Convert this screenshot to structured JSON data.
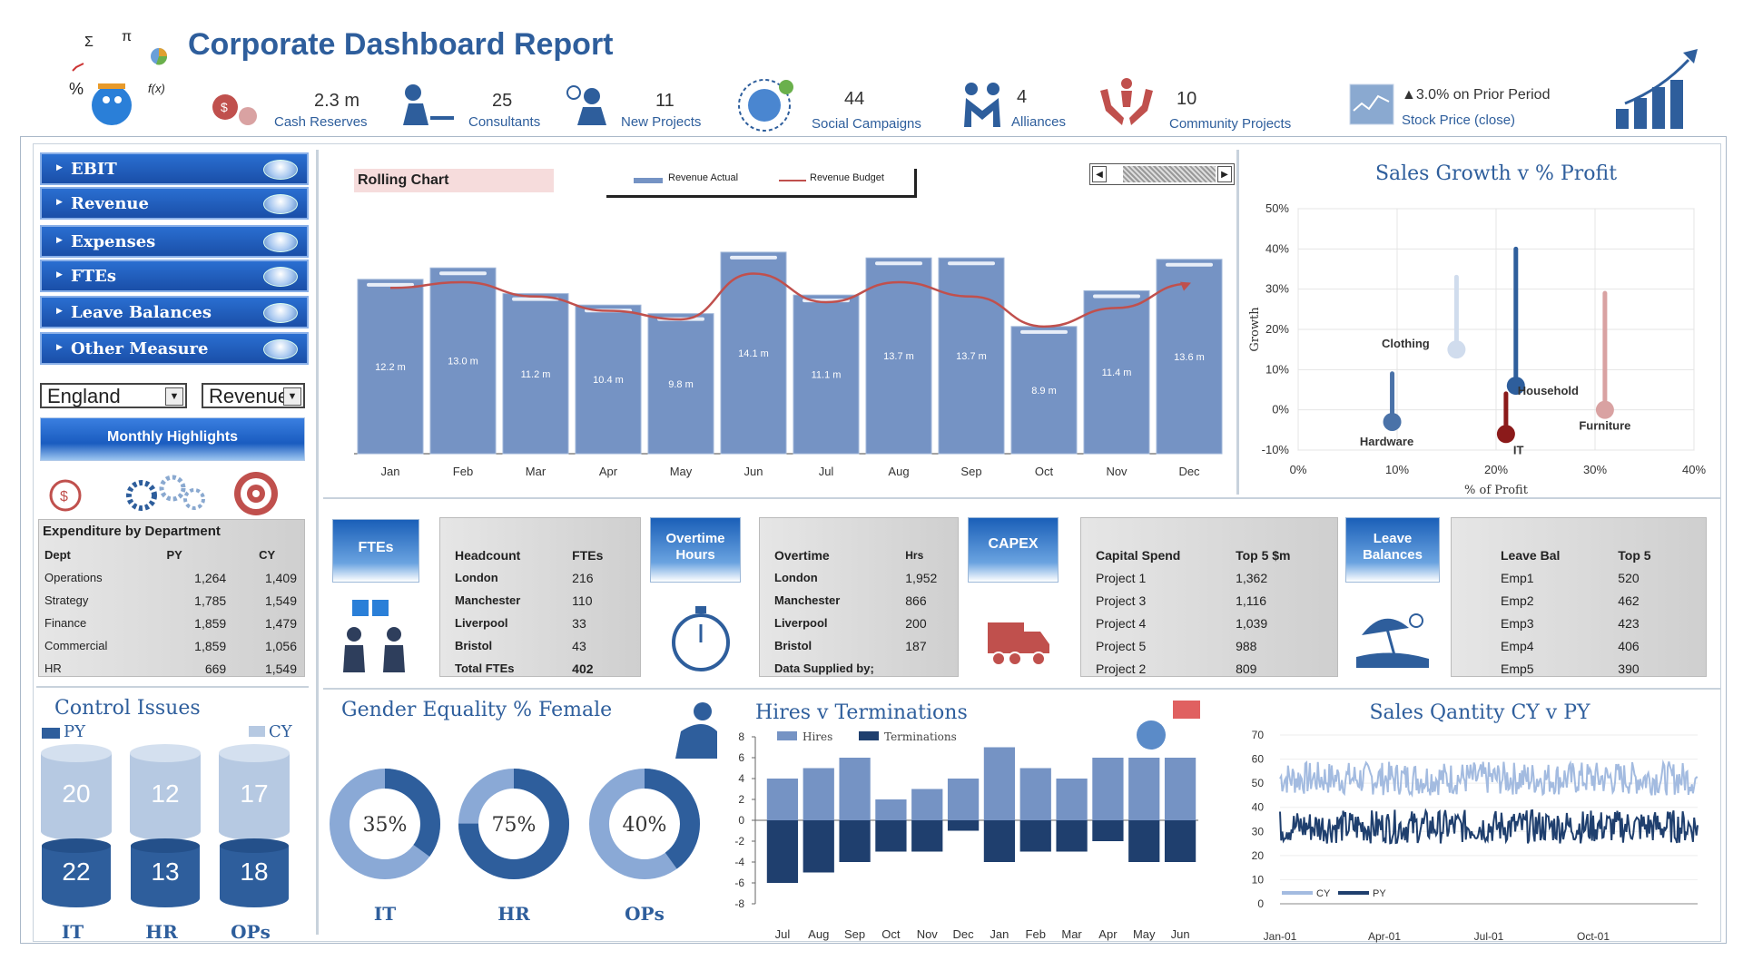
{
  "header": {
    "title": "Corporate Dashboard Report",
    "logo_symbols": {
      "sigma": "Σ",
      "pi": "π",
      "percent": "%",
      "fx": "f(x)"
    },
    "kpis": [
      {
        "value": "2.3 m",
        "label": "Cash Reserves",
        "icon": "money-bag-icon"
      },
      {
        "value": "25",
        "label": "Consultants",
        "icon": "consultant-icon"
      },
      {
        "value": "11",
        "label": "New Projects",
        "icon": "idea-person-icon"
      },
      {
        "value": "44",
        "label": "Social Campaigns",
        "icon": "thumbs-up-icon"
      },
      {
        "value": "4",
        "label": "Alliances",
        "icon": "alliance-people-icon"
      },
      {
        "value": "10",
        "label": "Community Projects",
        "icon": "hands-person-icon"
      },
      {
        "value": "▲3.0% on Prior Period",
        "label": "Stock Price (close)",
        "icon": "stock-chart-icon"
      }
    ]
  },
  "sidebar": {
    "menu": [
      "EBIT",
      "Revenue",
      "Expenses",
      "FTEs",
      "Leave Balances",
      "Other Measure"
    ],
    "region_select": "England",
    "measure_select": "Revenue",
    "highlights_button": "Monthly Highlights",
    "expenditure": {
      "title": "Expenditure by Department",
      "headers": [
        "Dept",
        "PY",
        "CY"
      ],
      "rows": [
        [
          "Operations",
          "1,264",
          "1,409"
        ],
        [
          "Strategy",
          "1,785",
          "1,549"
        ],
        [
          "Finance",
          "1,859",
          "1,479"
        ],
        [
          "Commercial",
          "1,859",
          "1,056"
        ],
        [
          "HR",
          "669",
          "1,549"
        ]
      ]
    }
  },
  "rolling": {
    "label": "Rolling Chart",
    "legend_actual": "Revenue Actual",
    "legend_budget": "Revenue Budget"
  },
  "panels": {
    "ftes": {
      "badge": "FTEs",
      "headers": [
        "Headcount",
        "FTEs"
      ],
      "rows": [
        [
          "London",
          "216"
        ],
        [
          "Manchester",
          "110"
        ],
        [
          "Liverpool",
          "33"
        ],
        [
          "Bristol",
          "43"
        ],
        [
          "Total FTEs",
          "402"
        ]
      ]
    },
    "overtime": {
      "badge": "Overtime Hours",
      "headers": [
        "Overtime",
        "Hrs"
      ],
      "rows": [
        [
          "London",
          "1,952"
        ],
        [
          "Manchester",
          "866"
        ],
        [
          "Liverpool",
          "200"
        ],
        [
          "Bristol",
          "187"
        ],
        [
          "Data Supplied by;",
          ""
        ]
      ]
    },
    "capex": {
      "badge": "CAPEX",
      "headers": [
        "Capital Spend",
        "Top 5 $m"
      ],
      "rows": [
        [
          "Project 1",
          "1,362"
        ],
        [
          "Project 3",
          "1,116"
        ],
        [
          "Project 4",
          "1,039"
        ],
        [
          "Project 5",
          "988"
        ],
        [
          "Project 2",
          "809"
        ]
      ]
    },
    "leave": {
      "badge": "Leave Balances",
      "headers": [
        "Leave Bal",
        "Top 5"
      ],
      "rows": [
        [
          "Emp1",
          "520"
        ],
        [
          "Emp2",
          "462"
        ],
        [
          "Emp3",
          "423"
        ],
        [
          "Emp4",
          "406"
        ],
        [
          "Emp5",
          "390"
        ]
      ]
    }
  },
  "control": {
    "title": "Control Issues",
    "py_label": "PY",
    "cy_label": "CY"
  },
  "gender": {
    "title": "Gender Equality % Female"
  },
  "colors": {
    "primary": "#2e5e9c",
    "bar": "#7593c4",
    "light": "#c3d4ea",
    "dark": "#1f3f6e",
    "budget": "#c0504d"
  },
  "chart_data": [
    {
      "id": "rolling",
      "type": "bar",
      "categories": [
        "Jan",
        "Feb",
        "Mar",
        "Apr",
        "May",
        "Jun",
        "Jul",
        "Aug",
        "Sep",
        "Oct",
        "Nov",
        "Dec"
      ],
      "series": [
        {
          "name": "Revenue Actual",
          "values": [
            12.2,
            13.0,
            11.2,
            10.4,
            9.8,
            14.1,
            11.1,
            13.7,
            13.7,
            8.9,
            11.4,
            13.6
          ],
          "labels": [
            "12.2 m",
            "13.0 m",
            "11.2 m",
            "10.4 m",
            "9.8 m",
            "14.1 m",
            "11.1 m",
            "13.7 m",
            "13.7 m",
            "8.9 m",
            "11.4 m",
            "13.6 m"
          ]
        },
        {
          "name": "Revenue Budget",
          "type": "line",
          "values": [
            11.6,
            12.0,
            11.0,
            10.0,
            9.4,
            12.6,
            10.6,
            12.0,
            11.0,
            8.9,
            10.2,
            11.9
          ]
        }
      ],
      "ylim": [
        0,
        16
      ]
    },
    {
      "id": "sales_growth",
      "type": "scatter",
      "title": "Sales Growth v % Profit",
      "xlabel": "% of Profit",
      "ylabel": "Growth",
      "xlim": [
        0,
        40
      ],
      "ylim": [
        -10,
        50
      ],
      "xticks": [
        "0%",
        "10%",
        "20%",
        "30%",
        "40%"
      ],
      "yticks": [
        "-10%",
        "0%",
        "10%",
        "20%",
        "30%",
        "40%",
        "50%"
      ],
      "points": [
        {
          "name": "Hardware",
          "x": 9.5,
          "y": -3,
          "top": 9,
          "color": "#4a72a8"
        },
        {
          "name": "Clothing",
          "x": 16,
          "y": 15,
          "top": 33,
          "color": "#d0dced"
        },
        {
          "name": "Household",
          "x": 22,
          "y": 6,
          "top": 40,
          "color": "#2e5e9c"
        },
        {
          "name": "IT",
          "x": 21,
          "y": -6,
          "top": 4,
          "color": "#8b1a1a"
        },
        {
          "name": "Furniture",
          "x": 31,
          "y": 0,
          "top": 29,
          "color": "#d9a2a2"
        }
      ]
    },
    {
      "id": "control_issues",
      "type": "bar",
      "categories": [
        "IT",
        "HR",
        "OPs"
      ],
      "series": [
        {
          "name": "PY",
          "values": [
            22,
            13,
            18
          ]
        },
        {
          "name": "CY",
          "values": [
            20,
            12,
            17
          ]
        }
      ]
    },
    {
      "id": "gender_equality",
      "type": "pie",
      "categories": [
        "IT",
        "HR",
        "OPs"
      ],
      "values": [
        35,
        75,
        40
      ],
      "labels": [
        "35%",
        "75%",
        "40%"
      ]
    },
    {
      "id": "hires_terminations",
      "type": "bar",
      "title": "Hires v Terminations",
      "categories": [
        "Jul",
        "Aug",
        "Sep",
        "Oct",
        "Nov",
        "Dec",
        "Jan",
        "Feb",
        "Mar",
        "Apr",
        "May",
        "Jun"
      ],
      "series": [
        {
          "name": "Hires",
          "values": [
            4,
            5,
            6,
            2,
            3,
            4,
            7,
            5,
            4,
            6,
            6,
            6
          ]
        },
        {
          "name": "Terminations",
          "values": [
            -6,
            -5,
            -4,
            -3,
            -3,
            -1,
            -4,
            -3,
            -3,
            -2,
            -4,
            -4
          ]
        }
      ],
      "ylim": [
        -8,
        8
      ],
      "yticks": [
        "8",
        "6",
        "4",
        "2",
        "0",
        "-2",
        "-4",
        "-6",
        "-8"
      ]
    },
    {
      "id": "sales_quantity",
      "type": "line",
      "title": "Sales Qantity CY v PY",
      "series": [
        {
          "name": "CY",
          "mean": 52,
          "amp": 7
        },
        {
          "name": "PY",
          "mean": 32,
          "amp": 7
        }
      ],
      "x_ticks": [
        "Jan-01",
        "Apr-01",
        "Jul-01",
        "Oct-01"
      ],
      "ylim": [
        0,
        70
      ],
      "yticks": [
        "70",
        "60",
        "50",
        "40",
        "30",
        "20",
        "10",
        "0"
      ]
    }
  ]
}
